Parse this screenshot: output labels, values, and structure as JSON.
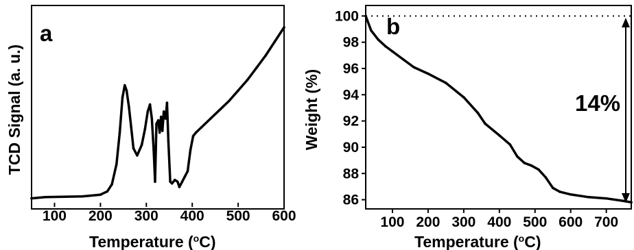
{
  "chart_data": [
    {
      "panel_label": "a",
      "type": "line",
      "xlabel_main": "Temperature (",
      "xlabel_sup": "o",
      "xlabel_unit": "C)",
      "ylabel": "TCD Signal (a. u.)",
      "xlim": [
        50,
        600
      ],
      "ylim": [
        0,
        100
      ],
      "y_ticks_shown": false,
      "xticks": [
        100,
        200,
        300,
        400,
        500,
        600
      ],
      "grid": false,
      "series": [
        {
          "x": [
            50,
            80,
            120,
            160,
            200,
            215,
            225,
            235,
            242,
            248,
            253,
            257,
            262,
            267,
            272,
            280,
            290,
            297,
            303,
            308,
            312,
            316,
            319,
            322,
            326,
            329,
            332,
            335,
            338,
            342,
            345,
            348,
            352,
            356,
            362,
            368,
            372,
            378,
            384,
            390,
            396,
            402,
            408,
            420,
            440,
            460,
            480,
            500,
            520,
            540,
            560,
            580,
            600
          ],
          "y": [
            2.5,
            3.2,
            3.4,
            3.6,
            4.6,
            6.5,
            10.5,
            22,
            40,
            60,
            67,
            64,
            55,
            43,
            31,
            27,
            33,
            42,
            52,
            56,
            48,
            30,
            12,
            45,
            47,
            40,
            49,
            41,
            52,
            48,
            57,
            35,
            12,
            11,
            13,
            12,
            9,
            12,
            15,
            18,
            30,
            38,
            40,
            43,
            48,
            53,
            58,
            64,
            70,
            77,
            84,
            92,
            100
          ]
        }
      ]
    },
    {
      "panel_label": "b",
      "type": "line",
      "xlabel_main": "Temperature (",
      "xlabel_sup": "o",
      "xlabel_unit": "C)",
      "ylabel": "Weight (%)",
      "xlim": [
        25,
        770
      ],
      "ylim": [
        85.3,
        100.8
      ],
      "xticks": [
        100,
        200,
        300,
        400,
        500,
        600,
        700
      ],
      "yticks": [
        86,
        88,
        90,
        92,
        94,
        96,
        98,
        100
      ],
      "grid": false,
      "reference_line_y": 100,
      "annotation": "14%",
      "series": [
        {
          "x": [
            25,
            40,
            60,
            80,
            100,
            130,
            160,
            200,
            250,
            300,
            340,
            360,
            400,
            430,
            450,
            470,
            490,
            510,
            530,
            550,
            570,
            600,
            650,
            700,
            750,
            770
          ],
          "y": [
            100,
            98.9,
            98.2,
            97.7,
            97.3,
            96.7,
            96.1,
            95.6,
            94.9,
            93.8,
            92.6,
            91.8,
            90.9,
            90.2,
            89.3,
            88.8,
            88.6,
            88.3,
            87.7,
            86.9,
            86.6,
            86.4,
            86.2,
            86.1,
            85.9,
            85.8
          ]
        }
      ]
    }
  ]
}
